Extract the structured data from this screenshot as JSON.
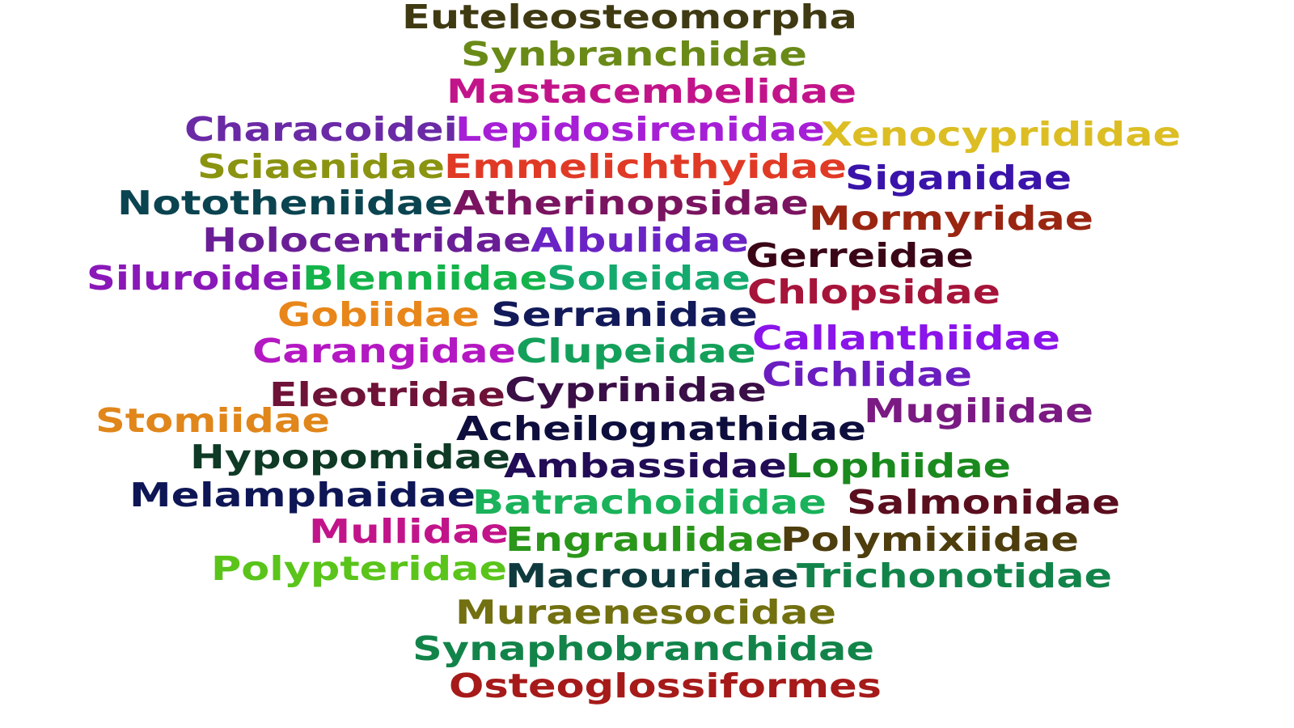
{
  "words": [
    {
      "id": "euteleosteomorpha",
      "text": "Euteleosteomorpha",
      "color": "#3f3a12"
    },
    {
      "id": "synbranchidae",
      "text": "Synbranchidae",
      "color": "#6a8a18"
    },
    {
      "id": "mastacembelidae",
      "text": "Mastacembelidae",
      "color": "#c2148a"
    },
    {
      "id": "characoidei",
      "text": "Characoidei",
      "color": "#6a2aa6"
    },
    {
      "id": "lepidosirenidae",
      "text": "Lepidosirenidae",
      "color": "#a61fd6"
    },
    {
      "id": "xenocyprididae",
      "text": "Xenocyprididae",
      "color": "#dcbe24"
    },
    {
      "id": "sciaenidae",
      "text": "Sciaenidae",
      "color": "#8a9410"
    },
    {
      "id": "emmelichthyidae",
      "text": "Emmelichthyidae",
      "color": "#e03a26"
    },
    {
      "id": "siganidae",
      "text": "Siganidae",
      "color": "#3a14aa"
    },
    {
      "id": "nototheniidae",
      "text": "Nototheniidae",
      "color": "#0a4450"
    },
    {
      "id": "atherinopsidae",
      "text": "Atherinopsidae",
      "color": "#7a1460"
    },
    {
      "id": "mormyridae",
      "text": "Mormyridae",
      "color": "#9a2612"
    },
    {
      "id": "holocentridae",
      "text": "Holocentridae",
      "color": "#6a1e96"
    },
    {
      "id": "albulidae",
      "text": "Albulidae",
      "color": "#6a24c6"
    },
    {
      "id": "gerreidae",
      "text": "Gerreidae",
      "color": "#3a0616"
    },
    {
      "id": "siluroidei",
      "text": "Siluroidei",
      "color": "#8a18b8"
    },
    {
      "id": "blenniidae",
      "text": "Blenniidae",
      "color": "#14b44a"
    },
    {
      "id": "soleidae",
      "text": "Soleidae",
      "color": "#14aa6e"
    },
    {
      "id": "chlopsidae",
      "text": "Chlopsidae",
      "color": "#a6143a"
    },
    {
      "id": "gobiidae",
      "text": "Gobiidae",
      "color": "#e8861a"
    },
    {
      "id": "serranidae",
      "text": "Serranidae",
      "color": "#121a5a"
    },
    {
      "id": "callanthiidae",
      "text": "Callanthiidae",
      "color": "#8a14ea"
    },
    {
      "id": "carangidae",
      "text": "Carangidae",
      "color": "#b418c2"
    },
    {
      "id": "clupeidae",
      "text": "Clupeidae",
      "color": "#14a05a"
    },
    {
      "id": "cichlidae",
      "text": "Cichlidae",
      "color": "#6a1ec0"
    },
    {
      "id": "eleotridae",
      "text": "Eleotridae",
      "color": "#6e1238"
    },
    {
      "id": "cyprinidae",
      "text": "Cyprinidae",
      "color": "#3a0e46"
    },
    {
      "id": "mugilidae",
      "text": "Mugilidae",
      "color": "#7a1a82"
    },
    {
      "id": "stomiidae",
      "text": "Stomiidae",
      "color": "#e0861a"
    },
    {
      "id": "acheilognathidae",
      "text": "Acheilognathidae",
      "color": "#0e0e3e"
    },
    {
      "id": "hypopomidae",
      "text": "Hypopomidae",
      "color": "#0e3a26"
    },
    {
      "id": "ambassidae",
      "text": "Ambassidae",
      "color": "#220c56"
    },
    {
      "id": "lophiidae",
      "text": "Lophiidae",
      "color": "#1a8a1e"
    },
    {
      "id": "melamphaidae",
      "text": "Melamphaidae",
      "color": "#0e1656"
    },
    {
      "id": "batrachoididae",
      "text": "Batrachoididae",
      "color": "#1ab25a"
    },
    {
      "id": "salmonidae",
      "text": "Salmonidae",
      "color": "#5a0e1e"
    },
    {
      "id": "mullidae",
      "text": "Mullidae",
      "color": "#c2148a"
    },
    {
      "id": "engraulidae",
      "text": "Engraulidae",
      "color": "#2a961a"
    },
    {
      "id": "polymixiidae",
      "text": "Polymixiidae",
      "color": "#4e3e0e"
    },
    {
      "id": "polypteridae",
      "text": "Polypteridae",
      "color": "#5ac41a"
    },
    {
      "id": "macrouridae",
      "text": "Macrouridae",
      "color": "#0e3a3e"
    },
    {
      "id": "trichonotidae",
      "text": "Trichonotidae",
      "color": "#12844a"
    },
    {
      "id": "muraenesocidae",
      "text": "Muraenesocidae",
      "color": "#727010"
    },
    {
      "id": "synaphobranchidae",
      "text": "Synaphobranchidae",
      "color": "#12844a"
    },
    {
      "id": "osteoglossiformes",
      "text": "Osteoglossiformes",
      "color": "#a61a1a"
    }
  ]
}
